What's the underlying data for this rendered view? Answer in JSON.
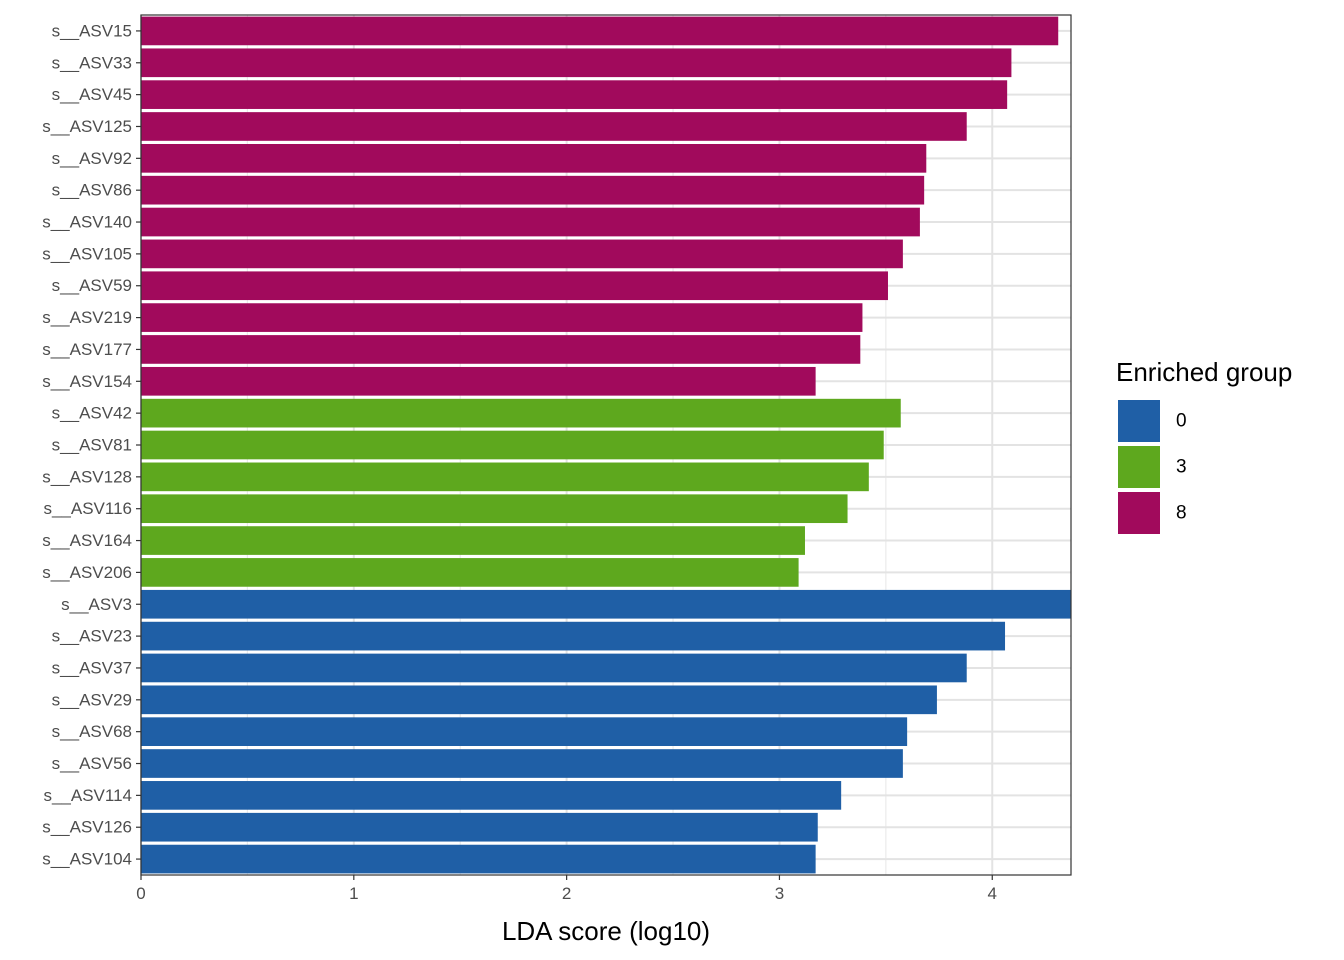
{
  "chart_data": {
    "type": "bar",
    "orientation": "horizontal",
    "xlabel": "LDA score (log10)",
    "ylabel": "",
    "xlim": [
      0,
      4.37
    ],
    "x_ticks": [
      0,
      1,
      2,
      3,
      4
    ],
    "grid": true,
    "legend": {
      "title": "Enriched group",
      "position": "right",
      "entries": [
        {
          "label": "0",
          "color": "#1F5FA6"
        },
        {
          "label": "3",
          "color": "#5EA81E"
        },
        {
          "label": "8",
          "color": "#A10A5C"
        }
      ]
    },
    "bars": [
      {
        "category": "s__ASV15",
        "value": 4.31,
        "group": "8"
      },
      {
        "category": "s__ASV33",
        "value": 4.09,
        "group": "8"
      },
      {
        "category": "s__ASV45",
        "value": 4.07,
        "group": "8"
      },
      {
        "category": "s__ASV125",
        "value": 3.88,
        "group": "8"
      },
      {
        "category": "s__ASV92",
        "value": 3.69,
        "group": "8"
      },
      {
        "category": "s__ASV86",
        "value": 3.68,
        "group": "8"
      },
      {
        "category": "s__ASV140",
        "value": 3.66,
        "group": "8"
      },
      {
        "category": "s__ASV105",
        "value": 3.58,
        "group": "8"
      },
      {
        "category": "s__ASV59",
        "value": 3.51,
        "group": "8"
      },
      {
        "category": "s__ASV219",
        "value": 3.39,
        "group": "8"
      },
      {
        "category": "s__ASV177",
        "value": 3.38,
        "group": "8"
      },
      {
        "category": "s__ASV154",
        "value": 3.17,
        "group": "8"
      },
      {
        "category": "s__ASV42",
        "value": 3.57,
        "group": "3"
      },
      {
        "category": "s__ASV81",
        "value": 3.49,
        "group": "3"
      },
      {
        "category": "s__ASV128",
        "value": 3.42,
        "group": "3"
      },
      {
        "category": "s__ASV116",
        "value": 3.32,
        "group": "3"
      },
      {
        "category": "s__ASV164",
        "value": 3.12,
        "group": "3"
      },
      {
        "category": "s__ASV206",
        "value": 3.09,
        "group": "3"
      },
      {
        "category": "s__ASV3",
        "value": 4.37,
        "group": "0"
      },
      {
        "category": "s__ASV23",
        "value": 4.06,
        "group": "0"
      },
      {
        "category": "s__ASV37",
        "value": 3.88,
        "group": "0"
      },
      {
        "category": "s__ASV29",
        "value": 3.74,
        "group": "0"
      },
      {
        "category": "s__ASV68",
        "value": 3.6,
        "group": "0"
      },
      {
        "category": "s__ASV56",
        "value": 3.58,
        "group": "0"
      },
      {
        "category": "s__ASV114",
        "value": 3.29,
        "group": "0"
      },
      {
        "category": "s__ASV126",
        "value": 3.18,
        "group": "0"
      },
      {
        "category": "s__ASV104",
        "value": 3.17,
        "group": "0"
      }
    ]
  }
}
